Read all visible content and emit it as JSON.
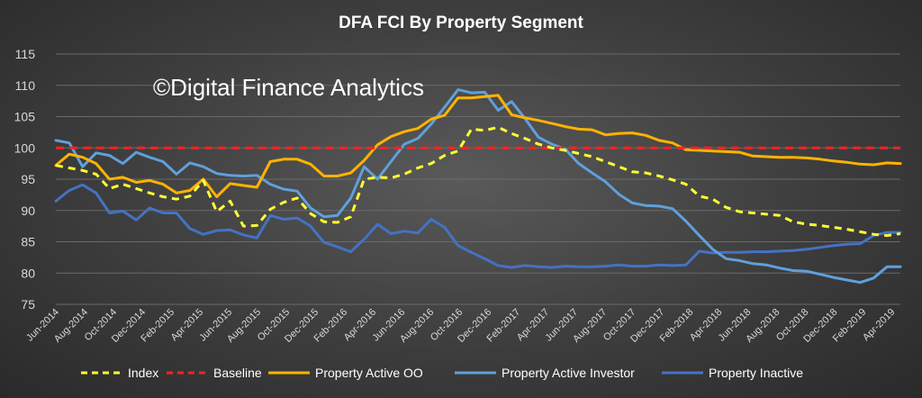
{
  "chart_data": {
    "type": "line",
    "title": "DFA FCI By Property Segment",
    "watermark": "©Digital Finance Analytics",
    "xlabel": "",
    "ylabel": "",
    "ylim": [
      75,
      115
    ],
    "yticks": [
      75,
      80,
      85,
      90,
      95,
      100,
      105,
      110,
      115
    ],
    "x_tick_labels": [
      "Jun-2014",
      "Aug-2014",
      "Oct-2014",
      "Dec-2014",
      "Feb-2015",
      "Apr-2015",
      "Jun-2015",
      "Aug-2015",
      "Oct-2015",
      "Dec-2015",
      "Feb-2016",
      "Apr-2016",
      "Jun-2016",
      "Aug-2016",
      "Oct-2016",
      "Dec-2016",
      "Feb-2017",
      "Apr-2017",
      "Jun-2017",
      "Aug-2017",
      "Oct-2017",
      "Dec-2017",
      "Feb-2018",
      "Apr-2018",
      "Jun-2018",
      "Aug-2018",
      "Oct-2018",
      "Dec-2018",
      "Feb-2019",
      "Apr-2019"
    ],
    "legend_position": "bottom",
    "series": [
      {
        "name": "Index",
        "color": "#ffff33",
        "style": "dashed",
        "values": [
          97.2,
          96.8,
          96.4,
          95.8,
          93.5,
          94.2,
          93.5,
          92.8,
          92.2,
          91.8,
          92.3,
          94.8,
          89.8,
          91.5,
          87.5,
          87.6,
          90.2,
          91.3,
          92.0,
          89.5,
          88.2,
          88.1,
          89.0,
          95.0,
          95.3,
          95.2,
          95.8,
          96.8,
          97.5,
          98.8,
          99.5,
          103.0,
          102.8,
          103.3,
          102.3,
          101.5,
          100.6,
          100.0,
          99.6,
          99.1,
          98.6,
          97.8,
          97.0,
          96.2,
          96.0,
          95.5,
          94.9,
          94.2,
          92.3,
          91.8,
          90.5,
          89.8,
          89.6,
          89.4,
          89.2,
          88.2,
          87.8,
          87.6,
          87.3,
          87.0,
          86.6,
          86.2,
          86.0,
          86.3
        ]
      },
      {
        "name": "Baseline",
        "color": "#ff2020",
        "style": "dashed",
        "values": [
          100,
          100,
          100,
          100,
          100,
          100,
          100,
          100,
          100,
          100,
          100,
          100,
          100,
          100,
          100,
          100,
          100,
          100,
          100,
          100,
          100,
          100,
          100,
          100,
          100,
          100,
          100,
          100,
          100,
          100,
          100,
          100,
          100,
          100,
          100,
          100,
          100,
          100,
          100,
          100,
          100,
          100,
          100,
          100,
          100,
          100,
          100,
          100,
          100,
          100,
          100,
          100,
          100,
          100,
          100,
          100,
          100,
          100,
          100,
          100,
          100,
          100,
          100,
          100
        ]
      },
      {
        "name": "Property Active OO",
        "color": "#ffb300",
        "style": "solid",
        "values": [
          97.2,
          99.0,
          98.5,
          97.5,
          95.0,
          95.3,
          94.5,
          94.8,
          94.2,
          92.8,
          93.2,
          95.0,
          92.2,
          94.3,
          94.0,
          93.7,
          97.8,
          98.2,
          98.2,
          97.4,
          95.5,
          95.5,
          96.0,
          98.0,
          100.5,
          101.8,
          102.6,
          103.1,
          104.6,
          105.2,
          108.0,
          108.0,
          108.2,
          108.4,
          105.3,
          104.8,
          104.4,
          103.9,
          103.4,
          103.0,
          102.9,
          102.1,
          102.3,
          102.4,
          102.0,
          101.2,
          100.8,
          99.7,
          99.6,
          99.5,
          99.4,
          99.3,
          98.7,
          98.6,
          98.5,
          98.5,
          98.4,
          98.2,
          97.9,
          97.7,
          97.4,
          97.3,
          97.6,
          97.5
        ]
      },
      {
        "name": "Property Active Investor",
        "color": "#5fa0db",
        "style": "solid",
        "values": [
          101.2,
          100.8,
          97.0,
          99.2,
          98.8,
          97.5,
          99.3,
          98.5,
          97.8,
          95.8,
          97.6,
          97.0,
          95.9,
          95.6,
          95.5,
          95.6,
          94.2,
          93.4,
          93.1,
          90.4,
          89.0,
          89.2,
          92.0,
          97.0,
          95.0,
          97.8,
          100.6,
          101.5,
          103.8,
          106.5,
          109.3,
          108.8,
          108.9,
          106.0,
          107.4,
          104.7,
          101.7,
          100.6,
          99.8,
          97.5,
          96.0,
          94.6,
          92.6,
          91.2,
          90.8,
          90.7,
          90.3,
          88.3,
          86.0,
          83.8,
          82.3,
          82.0,
          81.5,
          81.3,
          80.8,
          80.4,
          80.3,
          79.8,
          79.3,
          78.9,
          78.5,
          79.2,
          81.0,
          81.0
        ]
      },
      {
        "name": "Property Inactive",
        "color": "#4472c4",
        "style": "solid",
        "values": [
          91.5,
          93.2,
          94.1,
          92.8,
          89.6,
          89.9,
          88.5,
          90.4,
          89.6,
          89.6,
          87.1,
          86.2,
          86.8,
          86.9,
          86.1,
          85.6,
          89.2,
          88.6,
          88.8,
          87.5,
          84.9,
          84.2,
          83.4,
          85.4,
          87.8,
          86.3,
          86.7,
          86.4,
          88.6,
          87.3,
          84.4,
          83.3,
          82.3,
          81.2,
          80.9,
          81.2,
          81.0,
          80.9,
          81.1,
          81.0,
          81.0,
          81.1,
          81.3,
          81.1,
          81.1,
          81.3,
          81.2,
          81.3,
          83.5,
          83.2,
          83.3,
          83.3,
          83.4,
          83.4,
          83.5,
          83.6,
          83.8,
          84.1,
          84.4,
          84.6,
          84.7,
          86.0,
          86.5,
          86.5
        ]
      }
    ]
  }
}
